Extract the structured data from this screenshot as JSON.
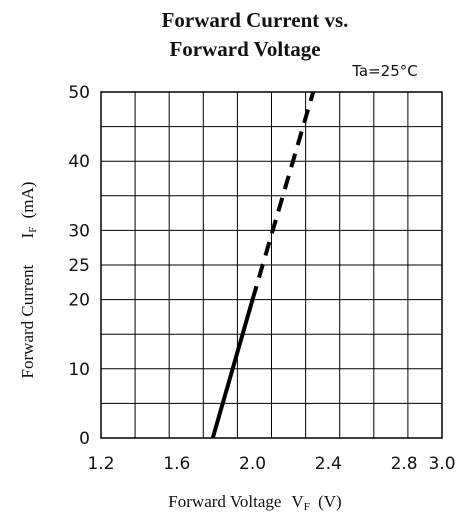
{
  "chart_data": {
    "type": "line",
    "title_line1": "Forward Current vs.",
    "title_line2": "Forward Voltage",
    "condition": "Ta=25°C",
    "xlabel": "Forward Voltage",
    "xlabel_symbol": "V",
    "xlabel_subscript": "F",
    "xlabel_unit": "(V)",
    "ylabel": "Forward Current",
    "ylabel_symbol": "I",
    "ylabel_subscript": "F",
    "ylabel_unit": "(mA)",
    "xlim": [
      1.2,
      3.0
    ],
    "ylim": [
      0,
      50
    ],
    "x_ticks": [
      {
        "value": 1.2,
        "label": "1.2"
      },
      {
        "value": 1.6,
        "label": "1.6"
      },
      {
        "value": 2.0,
        "label": "2.0"
      },
      {
        "value": 2.4,
        "label": "2.4"
      },
      {
        "value": 2.8,
        "label": "2.8"
      },
      {
        "value": 3.0,
        "label": "3.0"
      }
    ],
    "y_ticks": [
      {
        "value": 0,
        "label": "0"
      },
      {
        "value": 10,
        "label": "10"
      },
      {
        "value": 20,
        "label": "20"
      },
      {
        "value": 25,
        "label": "25"
      },
      {
        "value": 30,
        "label": "30"
      },
      {
        "value": 40,
        "label": "40"
      },
      {
        "value": 50,
        "label": "50"
      }
    ],
    "grid": true,
    "series": [
      {
        "style": "solid",
        "x": [
          1.79,
          2.0
        ],
        "y": [
          0,
          20
        ]
      },
      {
        "style": "dashed",
        "x": [
          2.0,
          2.32
        ],
        "y": [
          20,
          50
        ]
      }
    ]
  }
}
